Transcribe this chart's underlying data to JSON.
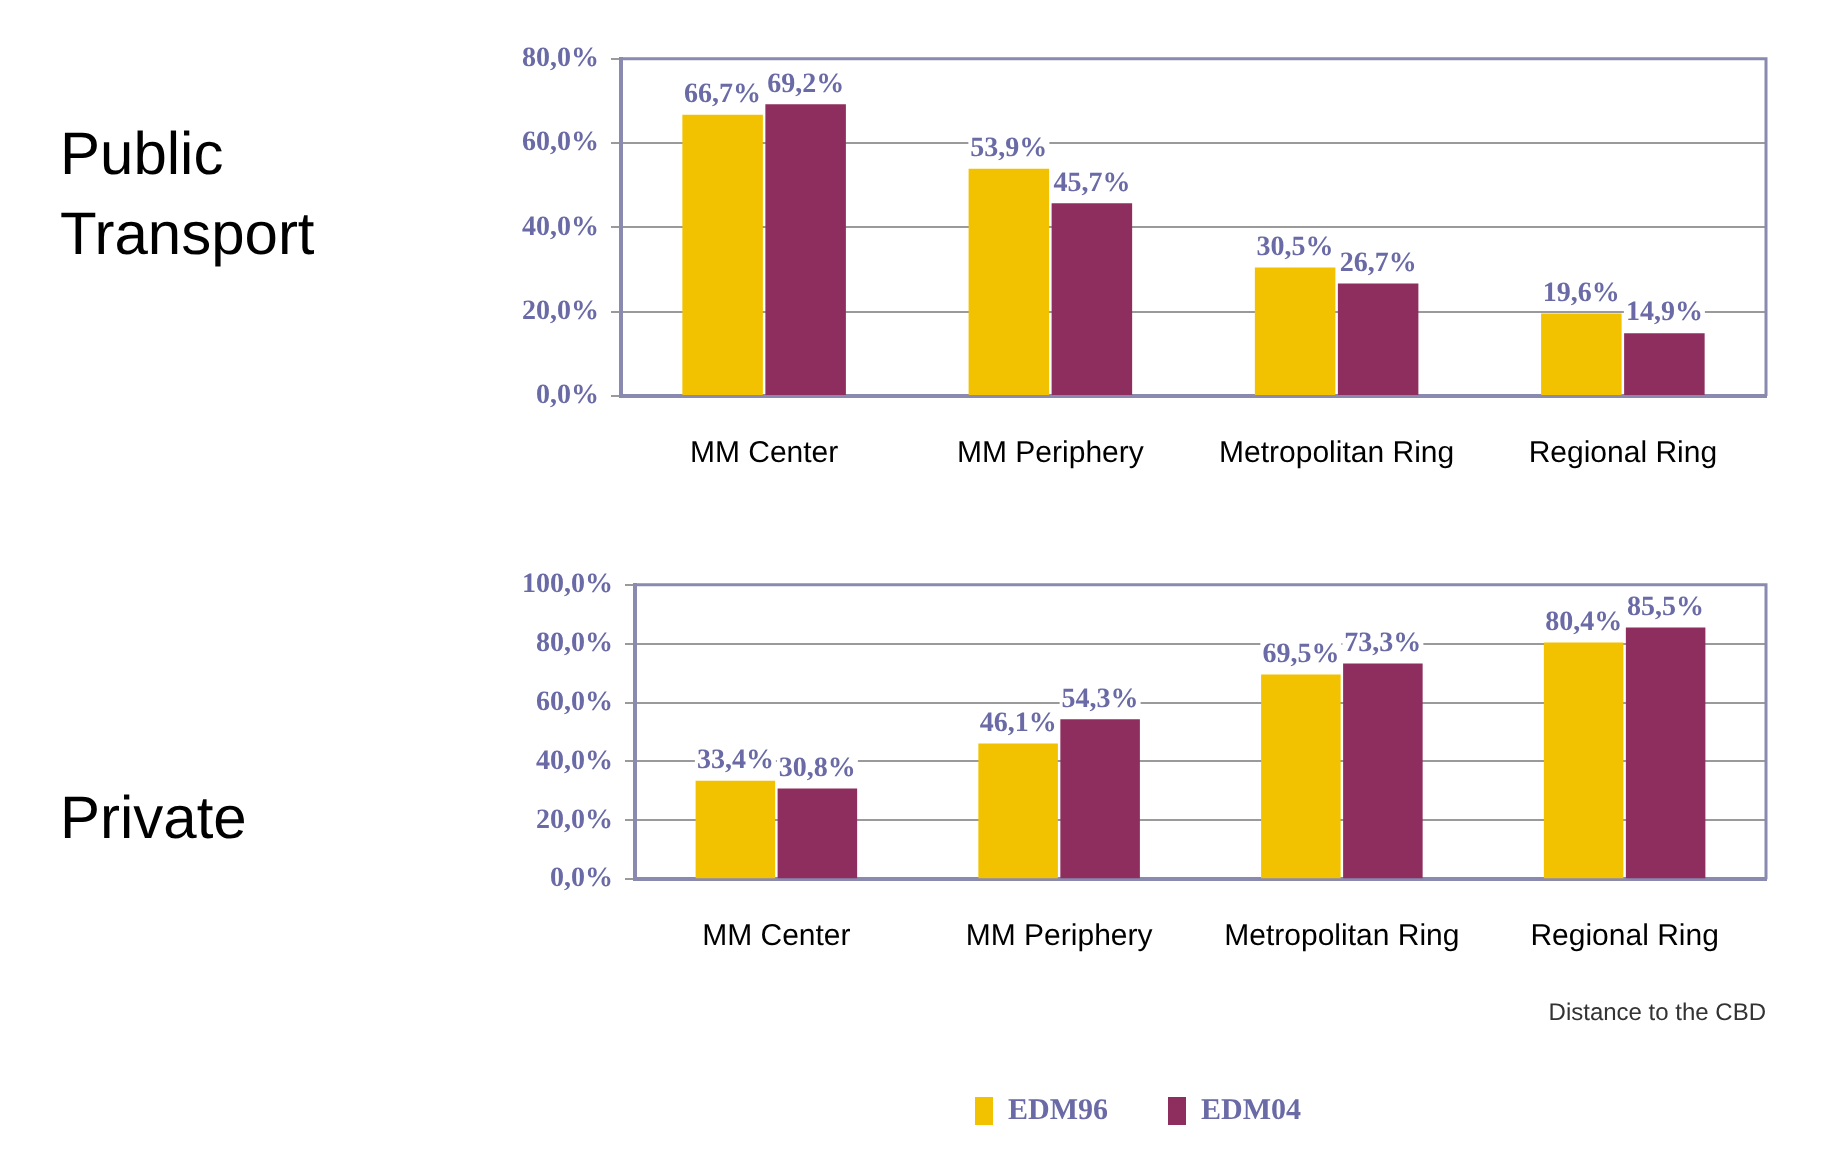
{
  "chart_data": [
    {
      "type": "bar",
      "title": "Public Transport",
      "categories": [
        "MM Center",
        "MM Periphery",
        "Metropolitan Ring",
        "Regional Ring"
      ],
      "series": [
        {
          "color": "#f2c200",
          "values": [
            66.7,
            53.9,
            30.5,
            19.6
          ],
          "value_labels": [
            "66,7%",
            "53,9%",
            "30,5%",
            "19,6%"
          ]
        },
        {
          "color": "#8e2e5e",
          "values": [
            69.2,
            45.7,
            26.7,
            14.9
          ],
          "value_labels": [
            "69,2%",
            "45,7%",
            "26,7%",
            "14,9%"
          ]
        }
      ],
      "ylim": [
        0,
        80
      ],
      "yticks": [
        {
          "value": 0,
          "label": "0,0%"
        },
        {
          "value": 20,
          "label": "20,0%"
        },
        {
          "value": 40,
          "label": "40,0%"
        },
        {
          "value": 60,
          "label": "60,0%"
        },
        {
          "value": 80,
          "label": "80,0%"
        }
      ],
      "grid": "y",
      "legend": false
    },
    {
      "type": "bar",
      "title": "Private",
      "xlabel": "Distance to the CBD",
      "categories": [
        "MM Center",
        "MM Periphery",
        "Metropolitan Ring",
        "Regional Ring"
      ],
      "series": [
        {
          "name": "EDM96",
          "color": "#f2c200",
          "values": [
            33.4,
            46.1,
            69.5,
            80.4
          ],
          "value_labels": [
            "33,4%",
            "46,1%",
            "69,5%",
            "80,4%"
          ]
        },
        {
          "name": "EDM04",
          "color": "#8e2e5e",
          "values": [
            30.8,
            54.3,
            73.3,
            85.5
          ],
          "value_labels": [
            "30,8%",
            "54,3%",
            "73,3%",
            "85,5%"
          ]
        }
      ],
      "ylim": [
        0,
        100
      ],
      "yticks": [
        {
          "value": 0,
          "label": "0,0%"
        },
        {
          "value": 20,
          "label": "20,0%"
        },
        {
          "value": 40,
          "label": "40,0%"
        },
        {
          "value": 60,
          "label": "60,0%"
        },
        {
          "value": 80,
          "label": "80,0%"
        },
        {
          "value": 100,
          "label": "100,0%"
        }
      ],
      "grid": "y",
      "legend": "bottom"
    }
  ]
}
